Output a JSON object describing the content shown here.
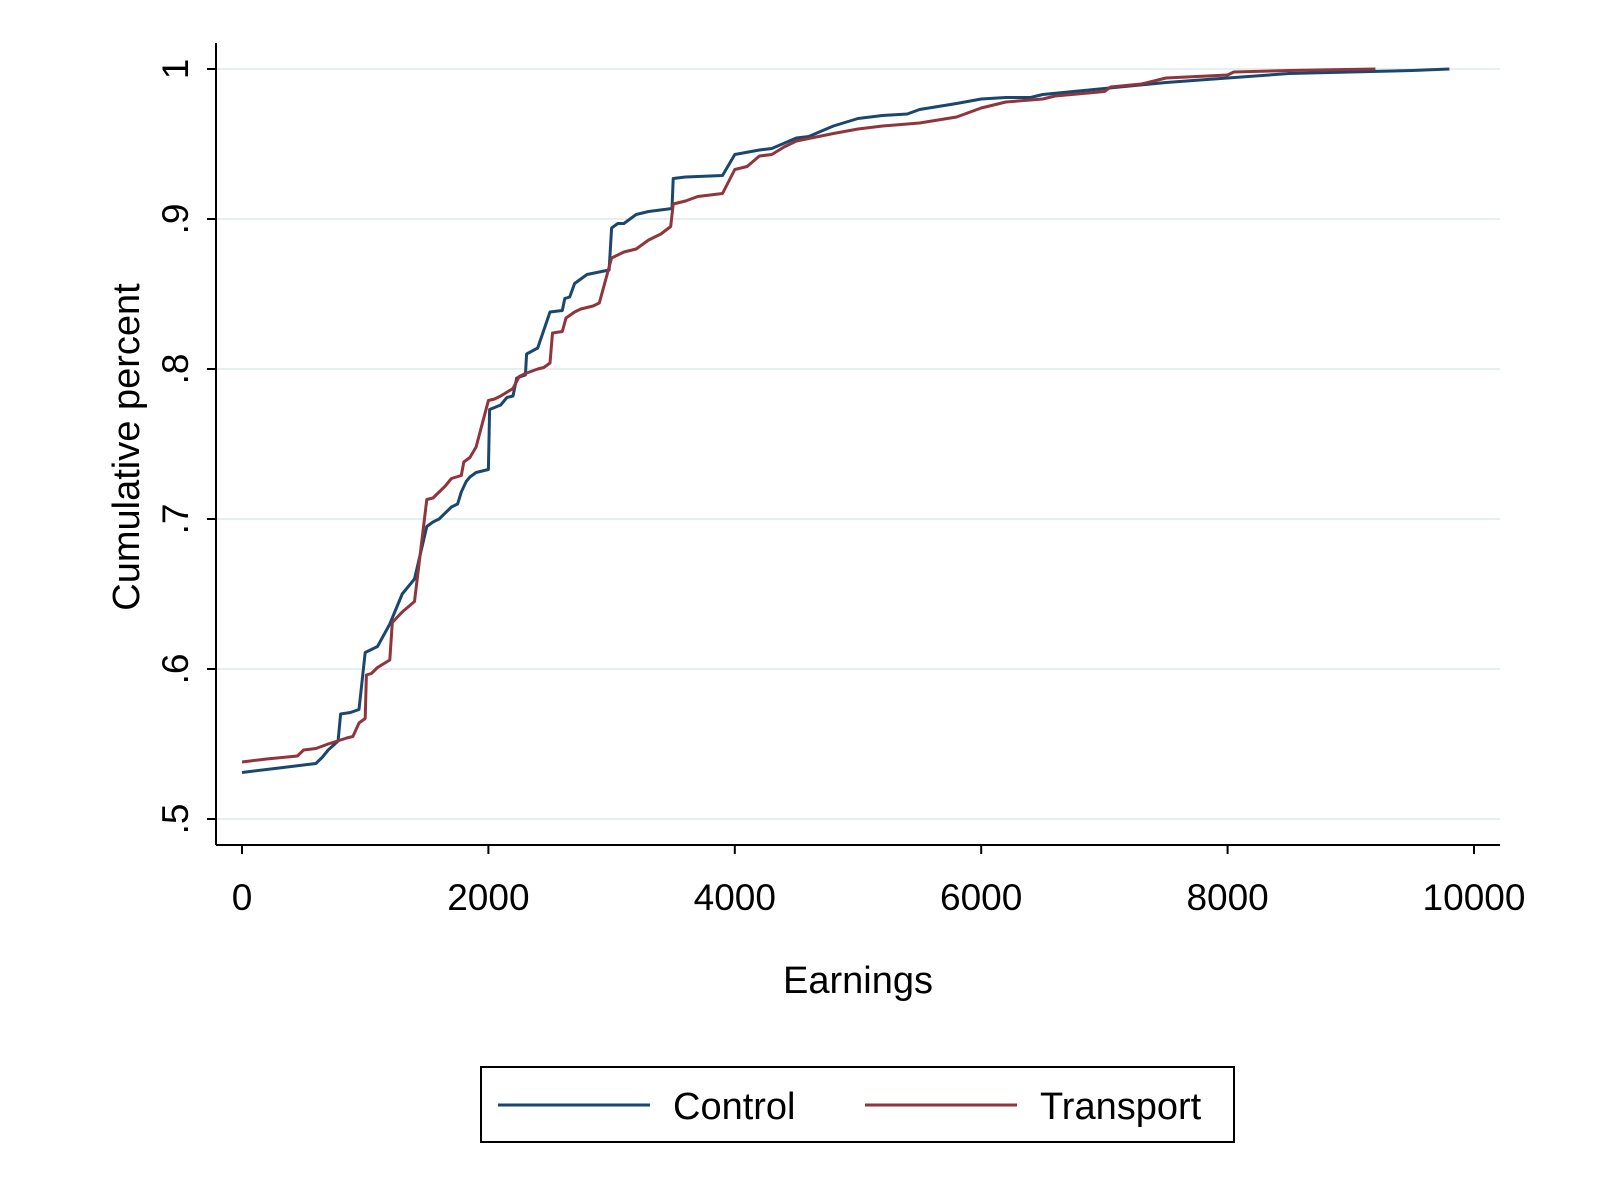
{
  "chart_data": {
    "type": "line",
    "title": "",
    "xlabel": "Earnings",
    "ylabel": "Cumulative percent",
    "xlim": [
      0,
      10000
    ],
    "ylim": [
      0.5,
      1.0
    ],
    "xticks": [
      0,
      2000,
      4000,
      6000,
      8000,
      10000
    ],
    "xtick_labels": [
      "0",
      "2000",
      "4000",
      "6000",
      "8000",
      "10000"
    ],
    "yticks": [
      0.5,
      0.6,
      0.7,
      0.8,
      0.9,
      1.0
    ],
    "ytick_labels": [
      ".5",
      ".6",
      ".7",
      ".8",
      ".9",
      "1"
    ],
    "grid": true,
    "legend_position": "bottom",
    "series": [
      {
        "name": "Control",
        "color": "#1a476f",
        "points": [
          [
            0,
            0.531
          ],
          [
            300,
            0.534
          ],
          [
            600,
            0.537
          ],
          [
            650,
            0.541
          ],
          [
            700,
            0.546
          ],
          [
            780,
            0.552
          ],
          [
            800,
            0.57
          ],
          [
            880,
            0.571
          ],
          [
            950,
            0.573
          ],
          [
            1000,
            0.611
          ],
          [
            1050,
            0.613
          ],
          [
            1100,
            0.615
          ],
          [
            1200,
            0.63
          ],
          [
            1300,
            0.65
          ],
          [
            1400,
            0.66
          ],
          [
            1500,
            0.695
          ],
          [
            1550,
            0.698
          ],
          [
            1600,
            0.7
          ],
          [
            1700,
            0.708
          ],
          [
            1750,
            0.71
          ],
          [
            1780,
            0.718
          ],
          [
            1820,
            0.725
          ],
          [
            1850,
            0.728
          ],
          [
            1900,
            0.731
          ],
          [
            1950,
            0.732
          ],
          [
            2000,
            0.733
          ],
          [
            2010,
            0.773
          ],
          [
            2100,
            0.776
          ],
          [
            2150,
            0.781
          ],
          [
            2200,
            0.782
          ],
          [
            2230,
            0.794
          ],
          [
            2300,
            0.796
          ],
          [
            2310,
            0.81
          ],
          [
            2400,
            0.814
          ],
          [
            2500,
            0.838
          ],
          [
            2600,
            0.839
          ],
          [
            2620,
            0.847
          ],
          [
            2660,
            0.848
          ],
          [
            2700,
            0.857
          ],
          [
            2800,
            0.863
          ],
          [
            2980,
            0.866
          ],
          [
            3000,
            0.894
          ],
          [
            3050,
            0.897
          ],
          [
            3100,
            0.897
          ],
          [
            3200,
            0.903
          ],
          [
            3300,
            0.905
          ],
          [
            3490,
            0.907
          ],
          [
            3500,
            0.927
          ],
          [
            3600,
            0.928
          ],
          [
            3900,
            0.929
          ],
          [
            4000,
            0.943
          ],
          [
            4200,
            0.946
          ],
          [
            4300,
            0.947
          ],
          [
            4500,
            0.954
          ],
          [
            4600,
            0.955
          ],
          [
            4800,
            0.962
          ],
          [
            5000,
            0.967
          ],
          [
            5200,
            0.969
          ],
          [
            5400,
            0.97
          ],
          [
            5500,
            0.973
          ],
          [
            5800,
            0.977
          ],
          [
            6000,
            0.98
          ],
          [
            6200,
            0.981
          ],
          [
            6400,
            0.981
          ],
          [
            6500,
            0.983
          ],
          [
            7000,
            0.987
          ],
          [
            7500,
            0.991
          ],
          [
            8000,
            0.994
          ],
          [
            8500,
            0.997
          ],
          [
            9000,
            0.998
          ],
          [
            9500,
            0.999
          ],
          [
            9800,
            1.0
          ]
        ]
      },
      {
        "name": "Transport",
        "color": "#90353b",
        "points": [
          [
            0,
            0.538
          ],
          [
            200,
            0.54
          ],
          [
            450,
            0.542
          ],
          [
            500,
            0.546
          ],
          [
            600,
            0.547
          ],
          [
            700,
            0.55
          ],
          [
            850,
            0.554
          ],
          [
            900,
            0.555
          ],
          [
            950,
            0.564
          ],
          [
            1000,
            0.567
          ],
          [
            1010,
            0.596
          ],
          [
            1050,
            0.597
          ],
          [
            1100,
            0.601
          ],
          [
            1200,
            0.606
          ],
          [
            1220,
            0.631
          ],
          [
            1300,
            0.638
          ],
          [
            1400,
            0.645
          ],
          [
            1500,
            0.713
          ],
          [
            1550,
            0.714
          ],
          [
            1650,
            0.722
          ],
          [
            1700,
            0.727
          ],
          [
            1780,
            0.729
          ],
          [
            1800,
            0.738
          ],
          [
            1850,
            0.741
          ],
          [
            1900,
            0.748
          ],
          [
            2000,
            0.779
          ],
          [
            2050,
            0.78
          ],
          [
            2100,
            0.782
          ],
          [
            2200,
            0.787
          ],
          [
            2250,
            0.795
          ],
          [
            2300,
            0.797
          ],
          [
            2400,
            0.8
          ],
          [
            2450,
            0.801
          ],
          [
            2500,
            0.804
          ],
          [
            2520,
            0.824
          ],
          [
            2600,
            0.825
          ],
          [
            2630,
            0.834
          ],
          [
            2700,
            0.838
          ],
          [
            2750,
            0.84
          ],
          [
            2850,
            0.842
          ],
          [
            2900,
            0.844
          ],
          [
            3000,
            0.874
          ],
          [
            3100,
            0.878
          ],
          [
            3200,
            0.88
          ],
          [
            3300,
            0.886
          ],
          [
            3400,
            0.89
          ],
          [
            3480,
            0.895
          ],
          [
            3500,
            0.91
          ],
          [
            3600,
            0.912
          ],
          [
            3700,
            0.915
          ],
          [
            3900,
            0.917
          ],
          [
            4000,
            0.933
          ],
          [
            4100,
            0.935
          ],
          [
            4200,
            0.942
          ],
          [
            4300,
            0.943
          ],
          [
            4400,
            0.948
          ],
          [
            4500,
            0.952
          ],
          [
            4800,
            0.957
          ],
          [
            5000,
            0.96
          ],
          [
            5200,
            0.962
          ],
          [
            5500,
            0.964
          ],
          [
            5800,
            0.968
          ],
          [
            5900,
            0.971
          ],
          [
            6000,
            0.974
          ],
          [
            6200,
            0.978
          ],
          [
            6500,
            0.98
          ],
          [
            6600,
            0.982
          ],
          [
            7000,
            0.985
          ],
          [
            7050,
            0.988
          ],
          [
            7300,
            0.99
          ],
          [
            7500,
            0.994
          ],
          [
            8000,
            0.996
          ],
          [
            8050,
            0.998
          ],
          [
            8500,
            0.999
          ],
          [
            9200,
            1.0
          ]
        ]
      }
    ]
  }
}
